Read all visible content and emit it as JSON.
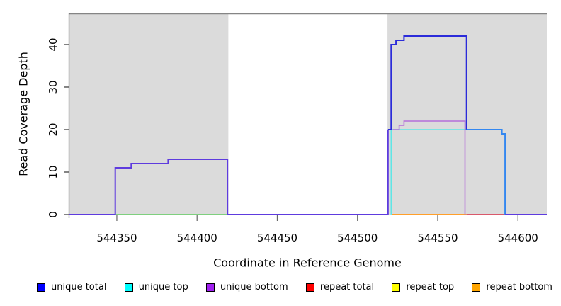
{
  "figure": {
    "y_axis_title": "Read Coverage Depth",
    "x_axis_title": "Coordinate in Reference Genome"
  },
  "legend": {
    "items": [
      {
        "label": "unique total",
        "color": "#0000FF"
      },
      {
        "label": "unique top",
        "color": "#00FFFF"
      },
      {
        "label": "unique bottom",
        "color": "#A020F0"
      },
      {
        "label": "repeat total",
        "color": "#FF0000"
      },
      {
        "label": "repeat top",
        "color": "#FFFF00"
      },
      {
        "label": "repeat bottom",
        "color": "#FFA500"
      }
    ]
  },
  "chart_data": {
    "type": "line",
    "subtype": "step-coverage",
    "title": "",
    "xlabel": "Coordinate in Reference Genome",
    "ylabel": "Read Coverage Depth",
    "xlim": [
      544320,
      544618
    ],
    "ylim": [
      0,
      47.33
    ],
    "x_ticks": [
      544350,
      544400,
      544450,
      544500,
      544550,
      544600
    ],
    "y_ticks": [
      0,
      10,
      20,
      30,
      40
    ],
    "grid": false,
    "legend_position": "bottom",
    "frame_color": "#858585",
    "axis_color": "#333333",
    "tick_color": "#666666",
    "shaded_regions": [
      {
        "name": "repeat-region-left",
        "x0": 544320,
        "x1": 544419.5,
        "color": "#DBDBDB"
      },
      {
        "name": "repeat-region-right",
        "x0": 544518.7,
        "x1": 544618,
        "color": "#DBDBDB"
      }
    ],
    "series": [
      {
        "name": "unique total",
        "color": "#0000FF",
        "points": [
          [
            544320,
            0
          ],
          [
            544349,
            0
          ],
          [
            544349,
            11
          ],
          [
            544359,
            11
          ],
          [
            544359,
            12
          ],
          [
            544382,
            12
          ],
          [
            544382,
            13
          ],
          [
            544419,
            13
          ],
          [
            544419,
            0
          ],
          [
            544519,
            0
          ],
          [
            544519,
            20
          ],
          [
            544521,
            20
          ],
          [
            544521,
            40
          ],
          [
            544524,
            40
          ],
          [
            544524,
            41
          ],
          [
            544529,
            41
          ],
          [
            544529,
            42
          ],
          [
            544568,
            42
          ],
          [
            544568,
            20
          ],
          [
            544590,
            20
          ],
          [
            544590,
            19
          ],
          [
            544592,
            19
          ],
          [
            544592,
            0
          ],
          [
            544618,
            0
          ]
        ]
      },
      {
        "name": "unique top",
        "color": "#00FFFF",
        "points": [
          [
            544320,
            0
          ],
          [
            544521,
            0
          ],
          [
            544521,
            20
          ],
          [
            544590,
            20
          ],
          [
            544590,
            19
          ],
          [
            544592,
            19
          ],
          [
            544592,
            0
          ],
          [
            544618,
            0
          ]
        ]
      },
      {
        "name": "unique bottom",
        "color": "#A020F0",
        "points": [
          [
            544320,
            0
          ],
          [
            544526,
            0
          ],
          [
            544526,
            21
          ],
          [
            544529,
            21
          ],
          [
            544529,
            22
          ],
          [
            544567,
            22
          ],
          [
            544567,
            0
          ],
          [
            544618,
            0
          ]
        ]
      },
      {
        "name": "repeat total",
        "color": "#FF0000",
        "points": [
          [
            544320,
            0
          ],
          [
            544618,
            0
          ]
        ]
      },
      {
        "name": "repeat top",
        "color": "#FFFF00",
        "points": [
          [
            544320,
            0
          ],
          [
            544618,
            0
          ]
        ]
      },
      {
        "name": "repeat bottom",
        "color": "#FFA500",
        "points": [
          [
            544320,
            0
          ],
          [
            544618,
            0
          ]
        ]
      }
    ],
    "render_segments": [
      {
        "name": "baseline-top-bottom-blend-green",
        "color": "#7FCF7F",
        "width": 2,
        "points": [
          [
            544349,
            0
          ],
          [
            544419,
            0
          ]
        ]
      },
      {
        "name": "baseline-repeat-bottom-orange",
        "color": "#FF9F2A",
        "width": 2,
        "points": [
          [
            544521,
            0
          ],
          [
            544568,
            0
          ]
        ]
      },
      {
        "name": "baseline-repeat-total-crimson",
        "color": "#D9596B",
        "width": 2,
        "points": [
          [
            544568,
            0
          ],
          [
            544592,
            0
          ]
        ]
      },
      {
        "name": "unique-top-cyan",
        "color": "#5FE6E6",
        "width": 1.6,
        "points": [
          [
            544521,
            0
          ],
          [
            544521,
            20
          ],
          [
            544568,
            20
          ]
        ]
      },
      {
        "name": "unique-bottom-purple",
        "color": "#B36FD9",
        "width": 1.6,
        "points": [
          [
            544522,
            20
          ],
          [
            544526,
            20
          ],
          [
            544526,
            21
          ],
          [
            544529,
            21
          ],
          [
            544529,
            22
          ],
          [
            544567,
            22
          ],
          [
            544567,
            0
          ]
        ]
      },
      {
        "name": "unique-total-left-slateblue",
        "color": "#5E3BDE",
        "width": 2,
        "points": [
          [
            544320,
            0
          ],
          [
            544349,
            0
          ],
          [
            544349,
            11
          ],
          [
            544359,
            11
          ],
          [
            544359,
            12
          ],
          [
            544382,
            12
          ],
          [
            544382,
            13
          ],
          [
            544419,
            13
          ],
          [
            544419,
            0
          ],
          [
            544519,
            0
          ],
          [
            544519,
            20
          ]
        ]
      },
      {
        "name": "unique-total-peak-darkblue",
        "color": "#2B2BD9",
        "width": 2,
        "points": [
          [
            544519,
            20
          ],
          [
            544521,
            20
          ],
          [
            544521,
            40
          ],
          [
            544524,
            40
          ],
          [
            544524,
            41
          ],
          [
            544529,
            41
          ],
          [
            544529,
            42
          ],
          [
            544568,
            42
          ],
          [
            544568,
            20
          ]
        ]
      },
      {
        "name": "unique-total-right-brightblue",
        "color": "#3387F0",
        "width": 2,
        "points": [
          [
            544568,
            20
          ],
          [
            544590,
            20
          ],
          [
            544590,
            19
          ],
          [
            544592,
            19
          ],
          [
            544592,
            0
          ]
        ]
      },
      {
        "name": "unique-total-tail-slateblue",
        "color": "#5E3BDE",
        "width": 2,
        "points": [
          [
            544592,
            0
          ],
          [
            544618,
            0
          ]
        ]
      }
    ]
  }
}
